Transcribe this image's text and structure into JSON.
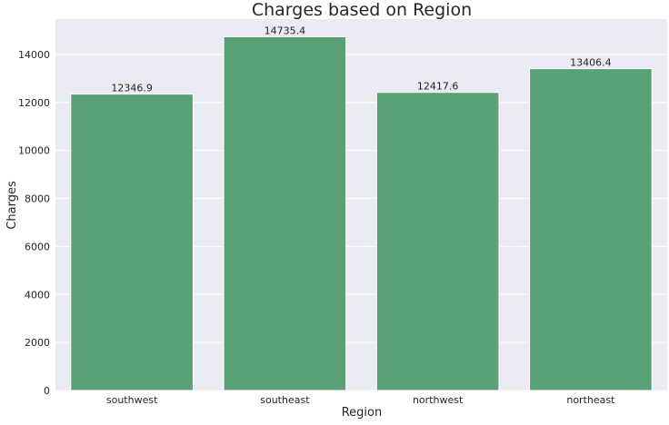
{
  "chart_data": {
    "type": "bar",
    "title": "Charges based on Region",
    "xlabel": "Region",
    "ylabel": "Charges",
    "categories": [
      "southwest",
      "southeast",
      "northwest",
      "northeast"
    ],
    "values": [
      12346.9,
      14735.4,
      12417.6,
      13406.4
    ],
    "value_labels": [
      "12346.9",
      "14735.4",
      "12417.6",
      "13406.4"
    ],
    "yticks": [
      0,
      2000,
      4000,
      6000,
      8000,
      10000,
      12000,
      14000
    ],
    "ylim": [
      0,
      15472
    ],
    "grid": true,
    "colors": {
      "bar": "#59a074",
      "plot_background": "#eaeaf2",
      "grid": "#ffffff",
      "text": "#262626"
    }
  }
}
